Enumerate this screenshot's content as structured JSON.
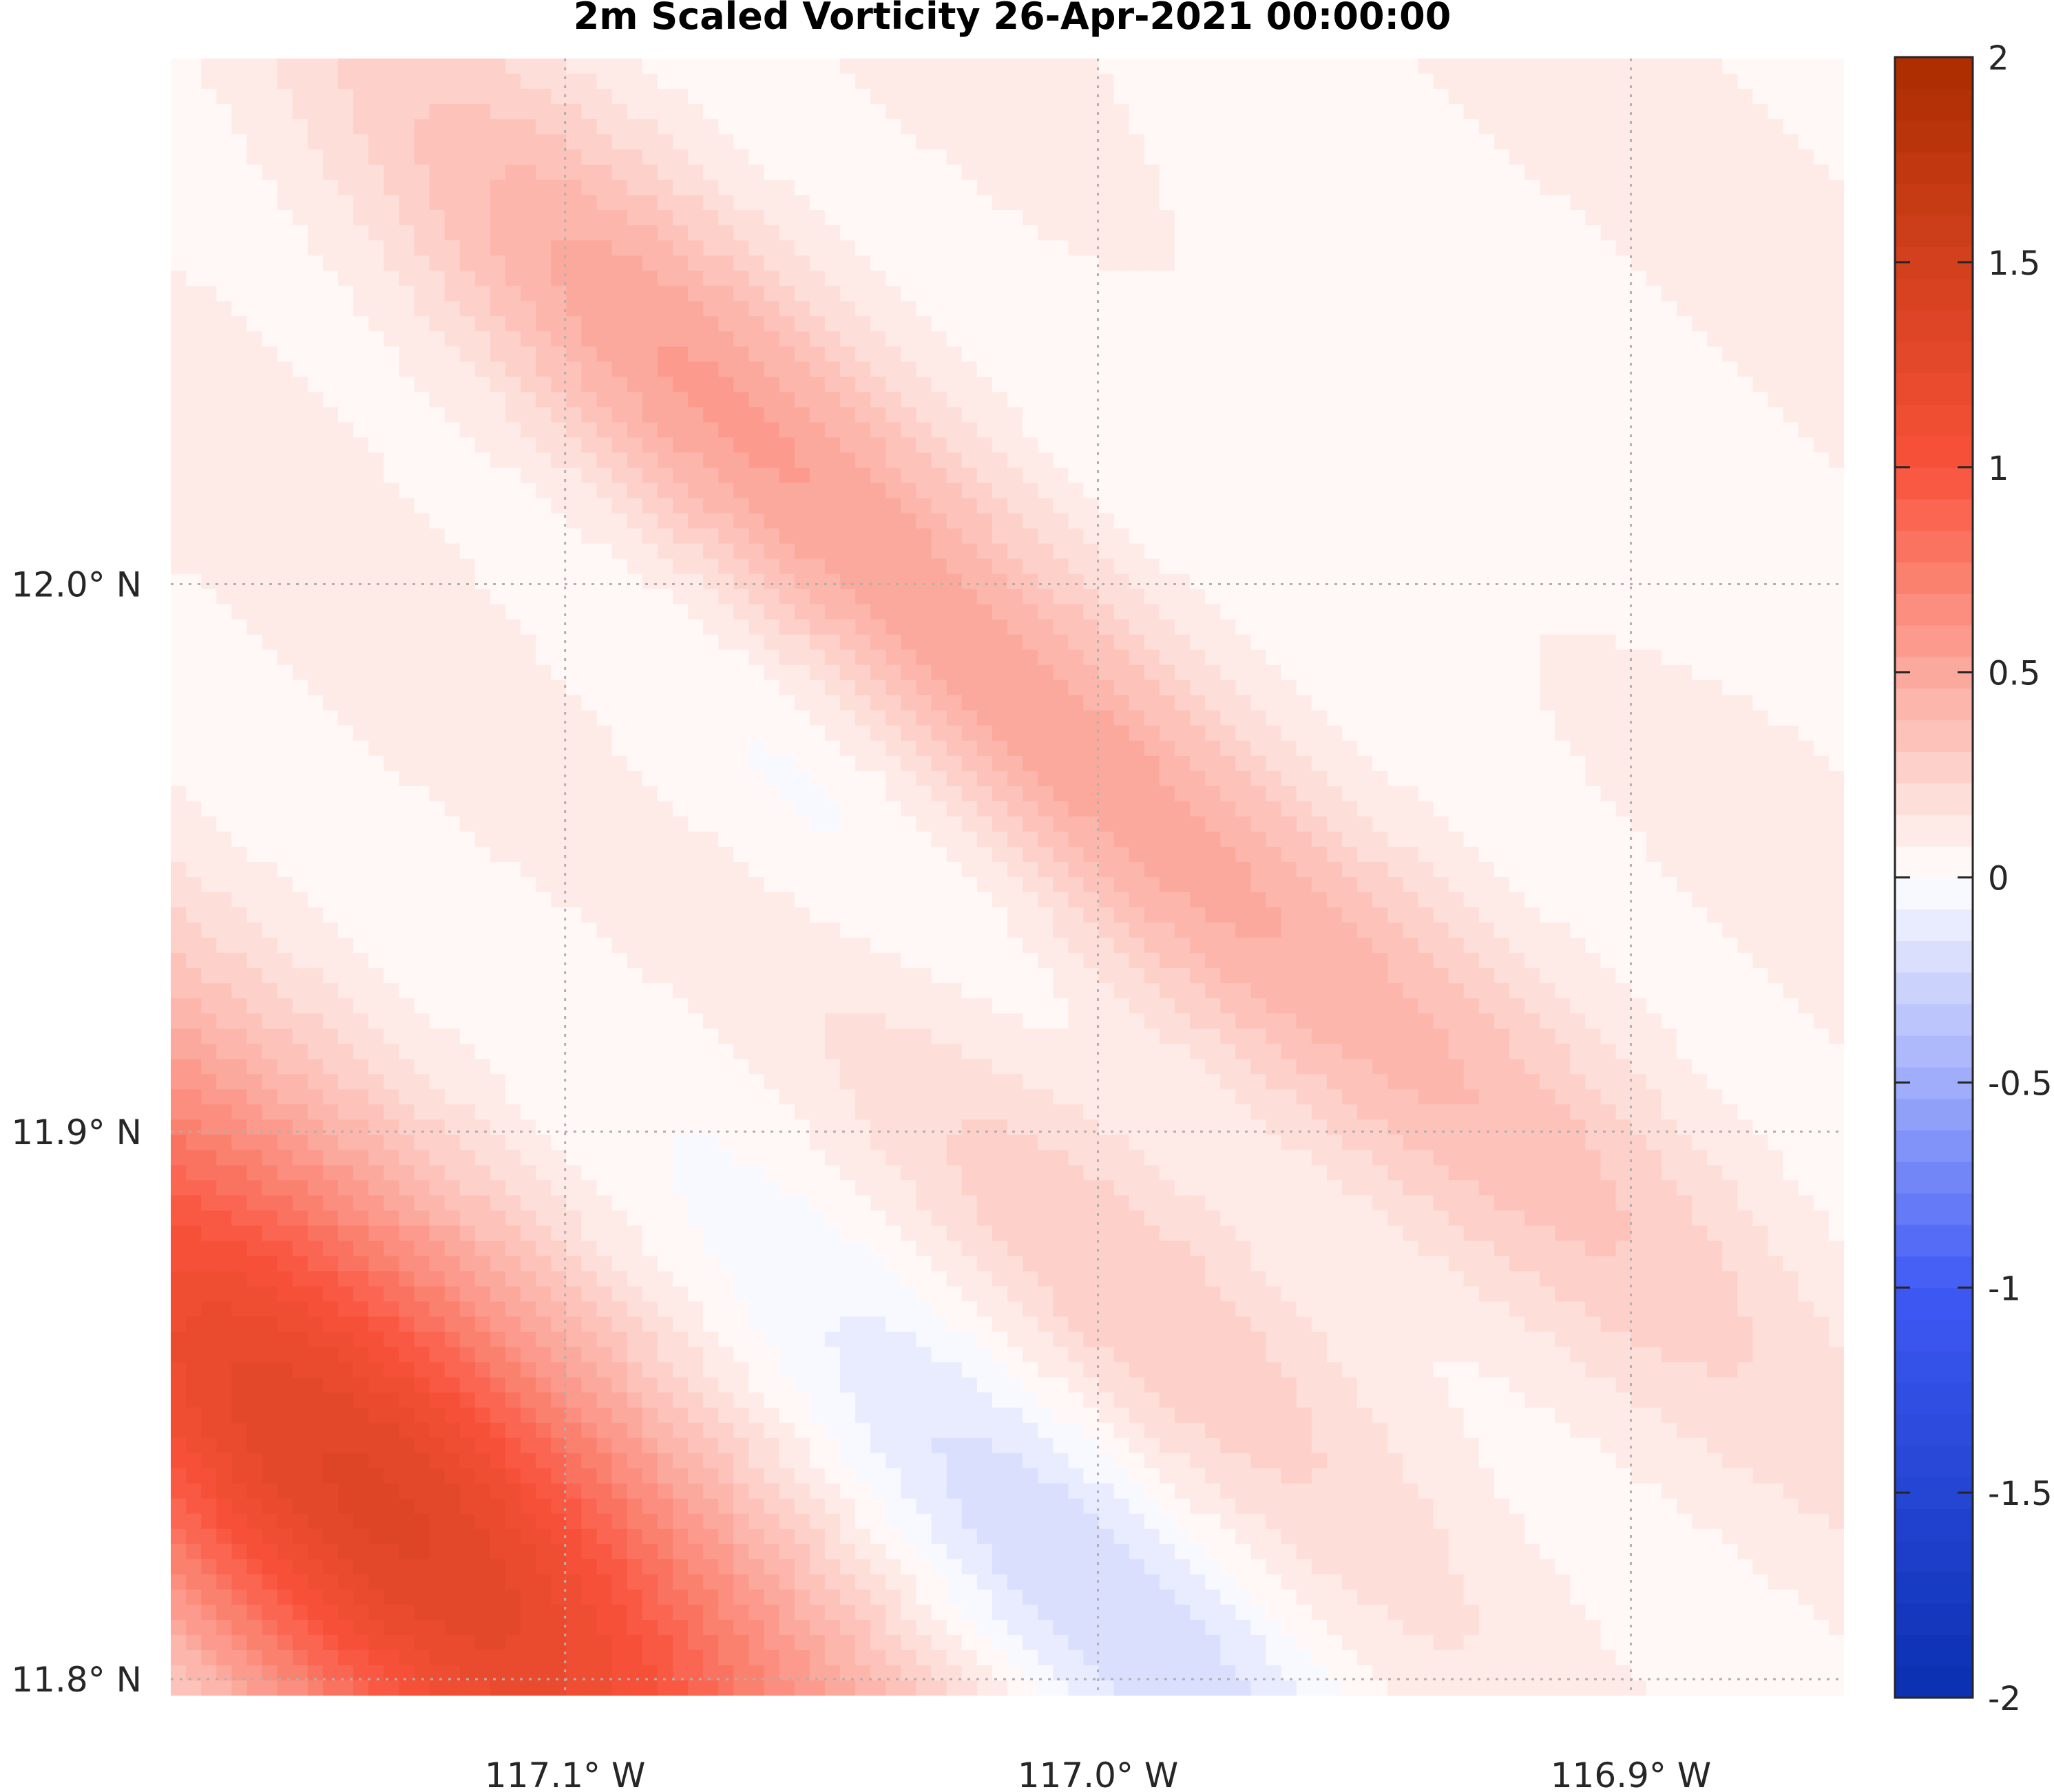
{
  "chart_data": {
    "type": "heatmap",
    "title": "2m Scaled Vorticity  26-Apr-2021 00:00:00",
    "xlabel": "",
    "ylabel": "",
    "x_ticks": [
      "117.1° W",
      "117.0° W",
      "116.9° W"
    ],
    "y_ticks": [
      "12.0° N",
      "11.9° N",
      "11.8° N"
    ],
    "x_tick_values": [
      -117.1,
      -117.0,
      -116.9
    ],
    "y_tick_values": [
      12.0,
      11.9,
      11.8
    ],
    "xlim": [
      -117.174,
      -116.86
    ],
    "ylim": [
      11.797,
      12.096
    ],
    "grid": true,
    "colorbar": {
      "range": [
        -2,
        2
      ],
      "ticks": [
        2,
        1.5,
        1,
        0.5,
        0,
        -0.5,
        -1,
        -1.5,
        -2
      ],
      "tick_labels": [
        "2",
        "1.5",
        "1",
        "0.5",
        "0",
        "-0.5",
        "-1",
        "-1.5",
        "-2"
      ],
      "colormap": "blue-white-red diverging",
      "levels": 52,
      "color_stops": [
        {
          "value": -2,
          "color": "#0a2fb0"
        },
        {
          "value": -1,
          "color": "#3f5af5"
        },
        {
          "value": 0,
          "color": "#ffffff"
        },
        {
          "value": 1,
          "color": "#f9523a"
        },
        {
          "value": 2,
          "color": "#ab2d00"
        }
      ]
    },
    "features": [
      {
        "kind": "positive_max",
        "lon": -117.135,
        "lat": 11.833,
        "value": 1.35
      },
      {
        "kind": "positive",
        "lon": -117.08,
        "lat": 12.04,
        "value": 0.45
      },
      {
        "kind": "positive",
        "lon": -117.0,
        "lat": 11.961,
        "value": 0.4
      },
      {
        "kind": "positive",
        "lon": -117.0,
        "lat": 11.875,
        "value": 0.3
      },
      {
        "kind": "positive",
        "lon": -116.92,
        "lat": 11.9,
        "value": 0.25
      },
      {
        "kind": "negative_min",
        "lon": -117.0,
        "lat": 11.815,
        "value": -0.2
      },
      {
        "kind": "negative",
        "lon": -117.04,
        "lat": 11.957,
        "value": -0.05
      },
      {
        "kind": "negative",
        "lon": -117.04,
        "lat": 11.89,
        "value": -0.03
      },
      {
        "kind": "negative",
        "lon": -116.945,
        "lat": 12.03,
        "value": -0.03
      }
    ]
  }
}
